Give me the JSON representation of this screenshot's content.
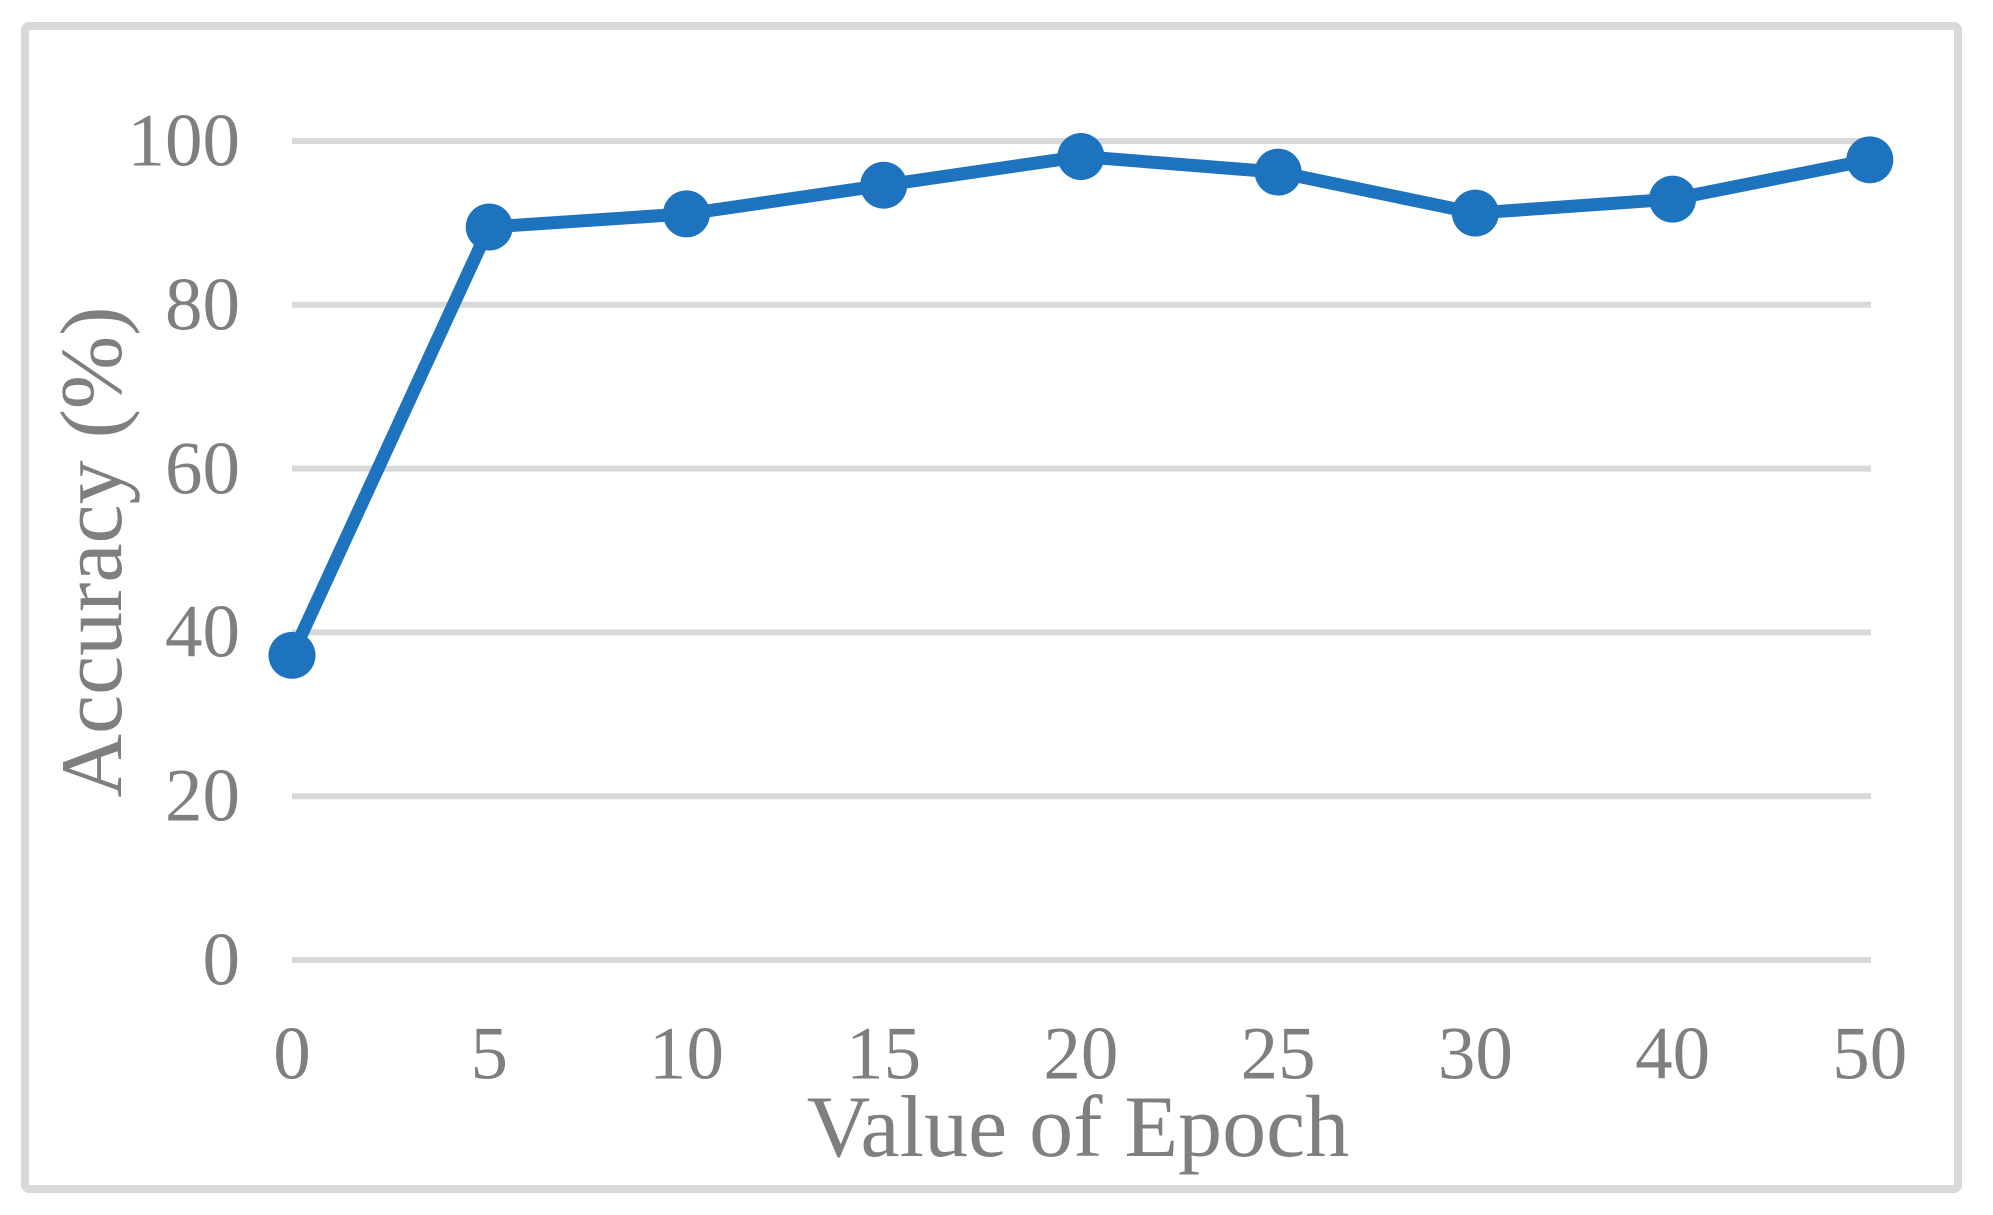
{
  "chart_data": {
    "type": "line",
    "title": "",
    "xlabel": "Value of Epoch",
    "ylabel": "Accuracy (%)",
    "categories": [
      "0",
      "5",
      "10",
      "15",
      "20",
      "25",
      "30",
      "40",
      "50"
    ],
    "values": [
      37.2,
      89.5,
      91.1,
      94.6,
      98.1,
      96.2,
      91.2,
      92.9,
      97.7
    ],
    "ylim": [
      0,
      100
    ],
    "yticks": [
      "0",
      "20",
      "40",
      "60",
      "80",
      "100"
    ],
    "grid": "horizontal",
    "legend": "none",
    "marker": "circle",
    "colors": {
      "series": "#1e73be",
      "gridline": "#d9d9d9",
      "frame_border": "#d9d9d9",
      "text": "#7f7f7f",
      "background": "#ffffff"
    }
  }
}
